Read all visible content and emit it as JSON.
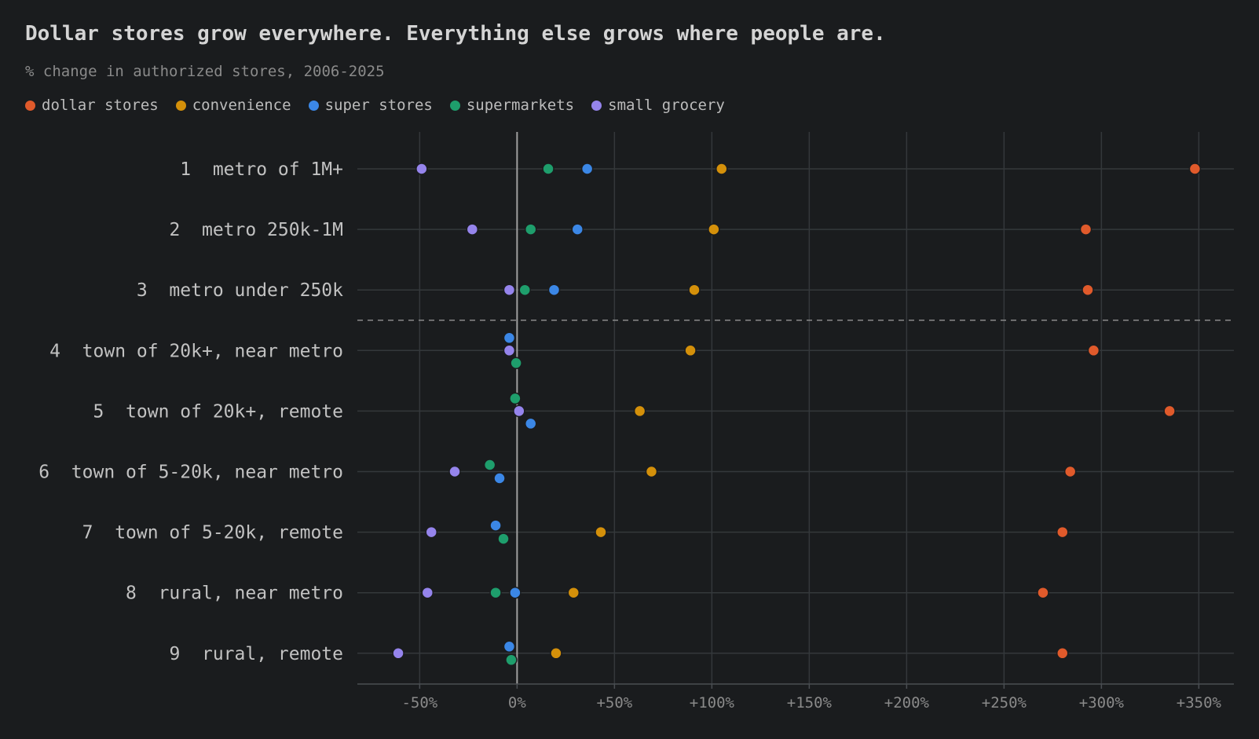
{
  "header": {
    "title": "Dollar stores grow everywhere. Everything else grows where people are.",
    "subtitle": "% change in authorized stores, 2006-2025"
  },
  "chart_data": {
    "type": "scatter",
    "xlim": [
      -82,
      368
    ],
    "x_ticks": [
      -50,
      0,
      50,
      100,
      150,
      200,
      250,
      300,
      350
    ],
    "x_tick_labels": [
      "-50%",
      "0%",
      "+50%",
      "+100%",
      "+150%",
      "+200%",
      "+250%",
      "+300%",
      "+350%"
    ],
    "grid": true,
    "legend_position": "top-left",
    "categories": [
      "1  metro of 1M+",
      "2  metro 250k-1M",
      "3  metro under 250k",
      "4  town of 20k+, near metro",
      "5  town of 20k+, remote",
      "6  town of 5-20k, near metro",
      "7  town of 5-20k, remote",
      "8  rural, near metro",
      "9  rural, remote"
    ],
    "divider_after_category": 3,
    "series": [
      {
        "name": "dollar stores",
        "color": "#e05a2b",
        "values": [
          348,
          292,
          293,
          296,
          335,
          284,
          280,
          270,
          280
        ]
      },
      {
        "name": "convenience",
        "color": "#d4900a",
        "values": [
          105,
          101,
          91,
          89,
          63,
          69,
          43,
          29,
          20
        ]
      },
      {
        "name": "super stores",
        "color": "#3b87e6",
        "values": [
          36,
          31,
          19,
          -4,
          7,
          -9,
          -11,
          -1,
          -4
        ]
      },
      {
        "name": "supermarkets",
        "color": "#1e9e6c",
        "values": [
          16,
          7,
          4,
          -0.5,
          -1,
          -14,
          -7,
          -11,
          -3
        ]
      },
      {
        "name": "small grocery",
        "color": "#9584ec",
        "values": [
          -49,
          -23,
          -4,
          -4,
          1,
          -32,
          -44,
          -46,
          -61
        ]
      }
    ]
  }
}
